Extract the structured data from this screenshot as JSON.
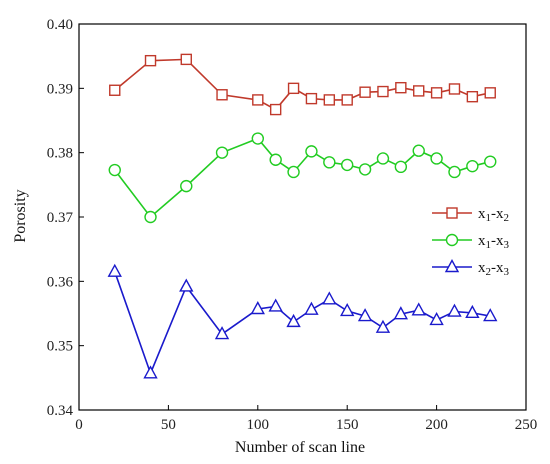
{
  "chart_data": {
    "type": "line",
    "title": "",
    "xlabel": "Number of scan line",
    "ylabel": "Porosity",
    "xlim": [
      0,
      250
    ],
    "ylim": [
      0.34,
      0.4
    ],
    "xticks": [
      "0",
      "50",
      "100",
      "150",
      "200",
      "250"
    ],
    "yticks": [
      "0.34",
      "0.35",
      "0.36",
      "0.37",
      "0.38",
      "0.39",
      "0.40"
    ],
    "grid": false,
    "legend_position": "right",
    "x": [
      20,
      40,
      60,
      80,
      100,
      110,
      120,
      130,
      140,
      150,
      160,
      170,
      180,
      190,
      200,
      210,
      220,
      230
    ],
    "series": [
      {
        "name": "x1-x2",
        "label_main": "x",
        "label_sub1": "1",
        "label_sep": "-x",
        "label_sub2": "2",
        "marker": "square",
        "color": "#c0392b",
        "values": [
          0.3897,
          0.3943,
          0.3945,
          0.389,
          0.3882,
          0.3867,
          0.39,
          0.3884,
          0.3882,
          0.3882,
          0.3894,
          0.3895,
          0.3901,
          0.3896,
          0.3893,
          0.3899,
          0.3887,
          0.3893
        ]
      },
      {
        "name": "x1-x3",
        "label_main": "x",
        "label_sub1": "1",
        "label_sep": "-x",
        "label_sub2": "3",
        "marker": "circle",
        "color": "#22cc22",
        "values": [
          0.3773,
          0.37,
          0.3748,
          0.38,
          0.3822,
          0.3789,
          0.377,
          0.3802,
          0.3785,
          0.3781,
          0.3774,
          0.3791,
          0.3778,
          0.3803,
          0.3791,
          0.377,
          0.3779,
          0.3786
        ]
      },
      {
        "name": "x2-x3",
        "label_main": "x",
        "label_sub1": "2",
        "label_sep": "-x",
        "label_sub2": "3",
        "marker": "triangle",
        "color": "#1a1acc",
        "values": [
          0.3615,
          0.3457,
          0.3592,
          0.3518,
          0.3557,
          0.3561,
          0.3537,
          0.3556,
          0.3572,
          0.3554,
          0.3546,
          0.3528,
          0.3549,
          0.3555,
          0.354,
          0.3553,
          0.3551,
          0.3546
        ]
      }
    ]
  }
}
